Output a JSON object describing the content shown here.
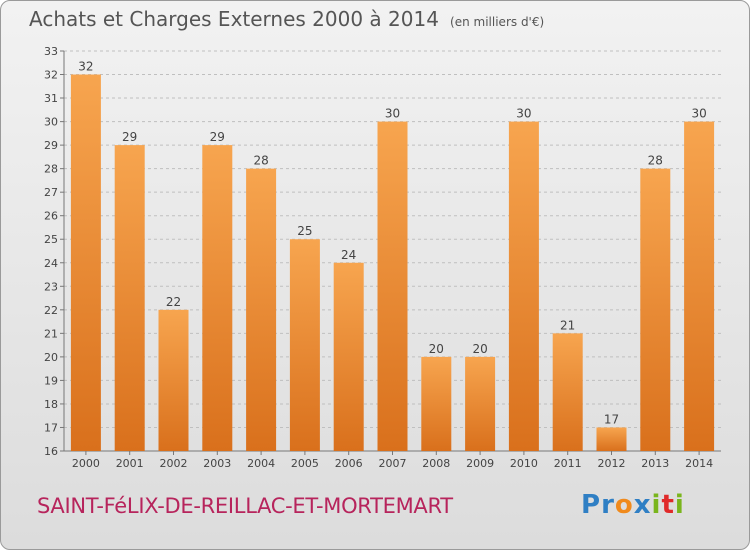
{
  "header": {
    "title": "Achats et Charges Externes 2000 à 2014",
    "unit": "(en milliers d'€)"
  },
  "footer": {
    "town": "SAINT-FéLIX-DE-REILLAC-ET-MORTEMART",
    "logo_letters": [
      {
        "char": "P",
        "color": "#2f7fc4"
      },
      {
        "char": "r",
        "color": "#2f7fc4"
      },
      {
        "char": "o",
        "color": "#f08a1c"
      },
      {
        "char": "x",
        "color": "#2f7fc4"
      },
      {
        "char": "i",
        "color": "#7ab51d"
      },
      {
        "char": "t",
        "color": "#e02a2a"
      },
      {
        "char": "i",
        "color": "#7ab51d"
      }
    ]
  },
  "chart_data": {
    "type": "bar",
    "categories": [
      "2000",
      "2001",
      "2002",
      "2003",
      "2004",
      "2005",
      "2006",
      "2007",
      "2008",
      "2009",
      "2010",
      "2011",
      "2012",
      "2013",
      "2014"
    ],
    "values": [
      32,
      29,
      22,
      29,
      28,
      25,
      24,
      30,
      20,
      20,
      30,
      21,
      17,
      28,
      30
    ],
    "ylim": [
      16,
      33
    ],
    "yticks": [
      16,
      17,
      18,
      19,
      20,
      21,
      22,
      23,
      24,
      25,
      26,
      27,
      28,
      29,
      30,
      31,
      32,
      33
    ],
    "grid": true,
    "bar_color_top": "#f7a54f",
    "bar_color_bottom": "#d9701c",
    "grid_color": "#bfbfbf"
  }
}
